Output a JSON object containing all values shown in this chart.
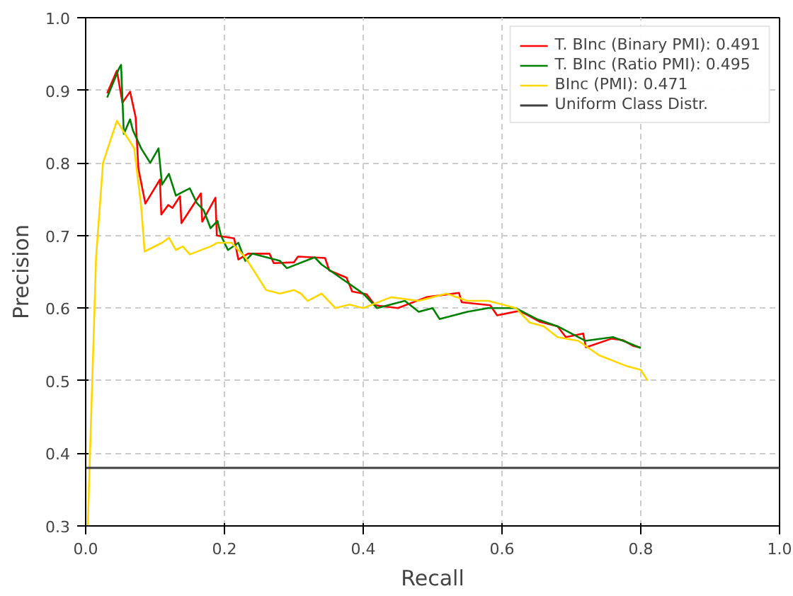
{
  "chart_data": {
    "type": "line",
    "xlabel": "Recall",
    "ylabel": "Precision",
    "xlim": [
      0.0,
      1.0
    ],
    "ylim": [
      0.3,
      1.0
    ],
    "xticks": [
      {
        "value": 0,
        "label": "0.0"
      },
      0.2,
      0.4,
      0.6,
      0.8,
      {
        "value": 1,
        "label": "1.0"
      }
    ],
    "yticks": [
      0.3,
      0.4,
      0.5,
      0.6,
      0.7,
      0.8,
      0.9,
      {
        "value": 1,
        "label": "1.0"
      }
    ],
    "grid": true,
    "legend": "top right",
    "line_style": "solid",
    "marker": "none",
    "series": [
      {
        "name": "T. BInc (Binary PMI): 0.491",
        "color": "#ff0000",
        "x": [
          0.031,
          0.045,
          0.053,
          0.064,
          0.072,
          0.076,
          0.086,
          0.107,
          0.109,
          0.119,
          0.125,
          0.136,
          0.138,
          0.166,
          0.168,
          0.187,
          0.189,
          0.214,
          0.22,
          0.234,
          0.265,
          0.271,
          0.3,
          0.306,
          0.345,
          0.351,
          0.376,
          0.384,
          0.405,
          0.417,
          0.45,
          0.491,
          0.538,
          0.542,
          0.583,
          0.593,
          0.624,
          0.634,
          0.655,
          0.68,
          0.692,
          0.717,
          0.721,
          0.758,
          0.774,
          0.789,
          0.799
        ],
        "values": [
          0.896,
          0.927,
          0.883,
          0.898,
          0.863,
          0.792,
          0.744,
          0.777,
          0.729,
          0.742,
          0.738,
          0.754,
          0.717,
          0.758,
          0.719,
          0.752,
          0.7,
          0.696,
          0.667,
          0.675,
          0.675,
          0.662,
          0.663,
          0.671,
          0.669,
          0.652,
          0.642,
          0.623,
          0.619,
          0.604,
          0.6,
          0.615,
          0.621,
          0.608,
          0.604,
          0.59,
          0.596,
          0.592,
          0.581,
          0.575,
          0.56,
          0.565,
          0.546,
          0.558,
          0.556,
          0.548,
          0.546
        ]
      },
      {
        "name": "T. BInc (Ratio PMI): 0.495",
        "color": "#008000",
        "x": [
          0.031,
          0.048,
          0.051,
          0.055,
          0.064,
          0.068,
          0.08,
          0.093,
          0.105,
          0.11,
          0.12,
          0.13,
          0.14,
          0.15,
          0.16,
          0.17,
          0.18,
          0.19,
          0.195,
          0.205,
          0.22,
          0.23,
          0.24,
          0.28,
          0.29,
          0.33,
          0.34,
          0.37,
          0.4,
          0.42,
          0.46,
          0.48,
          0.5,
          0.51,
          0.55,
          0.58,
          0.62,
          0.65,
          0.68,
          0.7,
          0.72,
          0.76,
          0.78,
          0.8
        ],
        "values": [
          0.89,
          0.93,
          0.935,
          0.84,
          0.86,
          0.845,
          0.82,
          0.8,
          0.82,
          0.77,
          0.785,
          0.755,
          0.76,
          0.765,
          0.745,
          0.735,
          0.71,
          0.72,
          0.7,
          0.68,
          0.69,
          0.665,
          0.675,
          0.665,
          0.655,
          0.67,
          0.66,
          0.64,
          0.62,
          0.6,
          0.61,
          0.595,
          0.6,
          0.585,
          0.595,
          0.6,
          0.6,
          0.585,
          0.575,
          0.565,
          0.555,
          0.56,
          0.553,
          0.545
        ]
      },
      {
        "name": "BInc (PMI): 0.471",
        "color": "#ffd700",
        "x": [
          0.003,
          0.015,
          0.025,
          0.045,
          0.06,
          0.07,
          0.08,
          0.085,
          0.11,
          0.12,
          0.13,
          0.14,
          0.15,
          0.18,
          0.19,
          0.21,
          0.23,
          0.26,
          0.28,
          0.3,
          0.31,
          0.32,
          0.34,
          0.36,
          0.38,
          0.4,
          0.44,
          0.48,
          0.52,
          0.55,
          0.58,
          0.62,
          0.64,
          0.66,
          0.68,
          0.71,
          0.74,
          0.78,
          0.8,
          0.81
        ],
        "values": [
          0.3,
          0.67,
          0.8,
          0.858,
          0.835,
          0.82,
          0.74,
          0.678,
          0.69,
          0.697,
          0.68,
          0.685,
          0.674,
          0.685,
          0.69,
          0.69,
          0.67,
          0.625,
          0.62,
          0.625,
          0.62,
          0.61,
          0.62,
          0.6,
          0.605,
          0.6,
          0.615,
          0.61,
          0.62,
          0.61,
          0.61,
          0.6,
          0.58,
          0.575,
          0.56,
          0.555,
          0.535,
          0.52,
          0.515,
          0.5
        ]
      }
    ],
    "ref_lines": [
      {
        "axis": "y",
        "value": 0.38,
        "label": "Uniform Class Distr.",
        "color": "#404040",
        "line_style": "solid"
      }
    ]
  }
}
